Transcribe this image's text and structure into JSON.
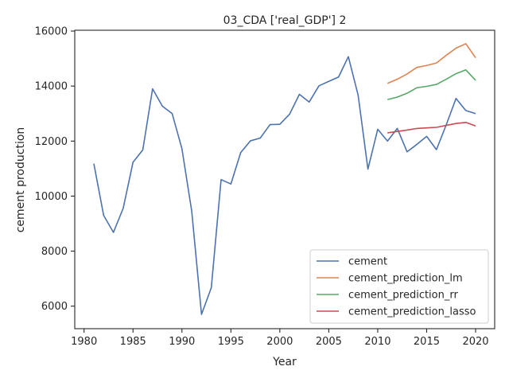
{
  "chart_data": {
    "type": "line",
    "title": "03_CDA ['real_GDP'] 2",
    "xlabel": "Year",
    "ylabel": "cement production",
    "xlim": [
      1979.05,
      2021.95
    ],
    "ylim": [
      5180,
      16030
    ],
    "x_ticks": [
      1980,
      1985,
      1990,
      1995,
      2000,
      2005,
      2010,
      2015,
      2020
    ],
    "y_ticks": [
      6000,
      8000,
      10000,
      12000,
      14000,
      16000
    ],
    "x_tick_labels": [
      "1980",
      "1985",
      "1990",
      "1995",
      "2000",
      "2005",
      "2010",
      "2015",
      "2020"
    ],
    "y_tick_labels": [
      "6000",
      "8000",
      "10000",
      "12000",
      "14000",
      "16000"
    ],
    "grid": false,
    "legend_position": "lower-right",
    "series": [
      {
        "name": "cement",
        "color": "#4c72b0",
        "x": [
          1981,
          1982,
          1983,
          1984,
          1985,
          1986,
          1987,
          1988,
          1989,
          1990,
          1991,
          1992,
          1993,
          1994,
          1995,
          1996,
          1997,
          1998,
          1999,
          2000,
          2001,
          2002,
          2003,
          2004,
          2005,
          2006,
          2007,
          2008,
          2009,
          2010,
          2011,
          2012,
          2013,
          2014,
          2015,
          2016,
          2017,
          2018,
          2019,
          2020
        ],
        "y": [
          11180,
          9300,
          8680,
          9560,
          11230,
          11680,
          13900,
          13270,
          13000,
          11720,
          9450,
          5700,
          6670,
          10600,
          10440,
          11580,
          12010,
          12110,
          12600,
          12610,
          12980,
          13700,
          13420,
          14010,
          14170,
          14330,
          15070,
          13670,
          10980,
          12430,
          12000,
          12460,
          11610,
          11880,
          12170,
          11690,
          12590,
          13550,
          13110,
          13000
        ]
      },
      {
        "name": "cement_prediction_lm",
        "color": "#dd8452",
        "x": [
          2011,
          2012,
          2013,
          2014,
          2015,
          2016,
          2017,
          2018,
          2019,
          2020
        ],
        "y": [
          14100,
          14250,
          14440,
          14680,
          14750,
          14840,
          15120,
          15380,
          15540,
          15030
        ]
      },
      {
        "name": "cement_prediction_rr",
        "color": "#55a868",
        "x": [
          2011,
          2012,
          2013,
          2014,
          2015,
          2016,
          2017,
          2018,
          2019,
          2020
        ],
        "y": [
          13510,
          13600,
          13740,
          13940,
          13990,
          14060,
          14250,
          14450,
          14590,
          14210
        ]
      },
      {
        "name": "cement_prediction_lasso",
        "color": "#c44e52",
        "x": [
          2011,
          2012,
          2013,
          2014,
          2015,
          2016,
          2017,
          2018,
          2019,
          2020
        ],
        "y": [
          12300,
          12350,
          12400,
          12460,
          12480,
          12500,
          12570,
          12640,
          12680,
          12550
        ]
      }
    ]
  }
}
